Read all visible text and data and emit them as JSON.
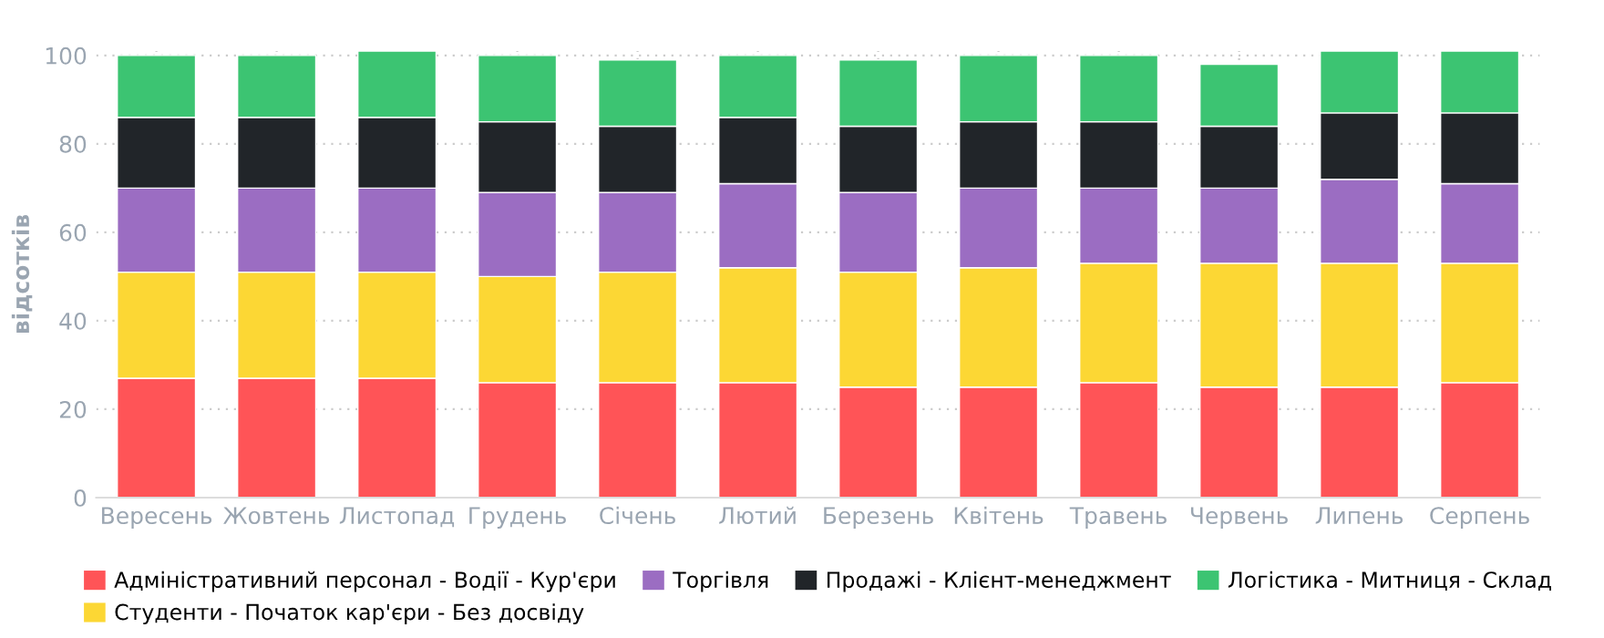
{
  "chart_data": {
    "type": "bar",
    "stacked": true,
    "ylabel": "відсотків",
    "categories": [
      "Вересень",
      "Жовтень",
      "Листопад",
      "Грудень",
      "Січень",
      "Лютий",
      "Березень",
      "Квітень",
      "Травень",
      "Червень",
      "Липень",
      "Серпень"
    ],
    "series": [
      {
        "name": "Адміністративний персонал - Водії - Кур'єри",
        "color": "#ff5457",
        "values": [
          27,
          27,
          27,
          26,
          26,
          26,
          25,
          25,
          26,
          25,
          25,
          26
        ]
      },
      {
        "name": "Студенти - Початок кар'єри - Без досвіду",
        "color": "#fcd734",
        "values": [
          24,
          24,
          24,
          24,
          25,
          26,
          26,
          27,
          27,
          28,
          28,
          27
        ]
      },
      {
        "name": "Торгівля",
        "color": "#9b6dc2",
        "values": [
          19,
          19,
          19,
          19,
          18,
          19,
          18,
          18,
          17,
          17,
          19,
          18
        ]
      },
      {
        "name": "Продажі - Клієнт-менеджмент",
        "color": "#212529",
        "values": [
          16,
          16,
          16,
          16,
          15,
          15,
          15,
          15,
          15,
          14,
          15,
          16
        ]
      },
      {
        "name": "Логістика - Митниця - Склад",
        "color": "#3cc472",
        "values": [
          14,
          14,
          15,
          15,
          15,
          14,
          15,
          15,
          15,
          14,
          14,
          14
        ]
      }
    ],
    "ylim": [
      0,
      101
    ],
    "yticks": [
      0,
      20,
      40,
      60,
      80,
      100
    ],
    "grid": true,
    "legend": "bottom"
  }
}
